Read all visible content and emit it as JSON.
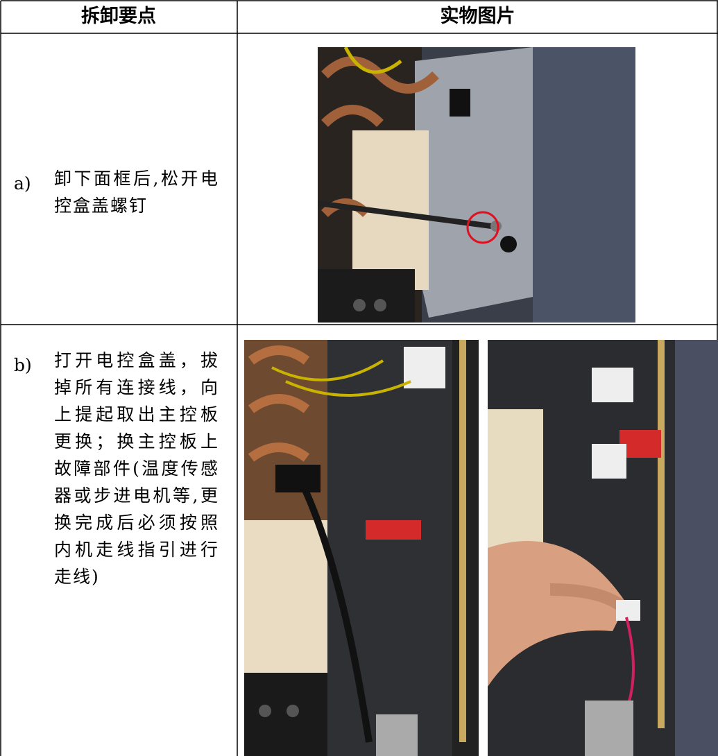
{
  "table": {
    "header": [
      "拆卸要点",
      "实物图片"
    ],
    "rows": [
      [
        "a)",
        "卸下面框后,松开电控盒盖螺钉"
      ],
      [
        "b)",
        "打开电控盒盖，拔掉所有连接线，向上提起取出主控板更换；换主控板上故障部件(温度传感器或步进电机等,更换完成后必须按照内机走线指引进行走线)"
      ]
    ]
  }
}
